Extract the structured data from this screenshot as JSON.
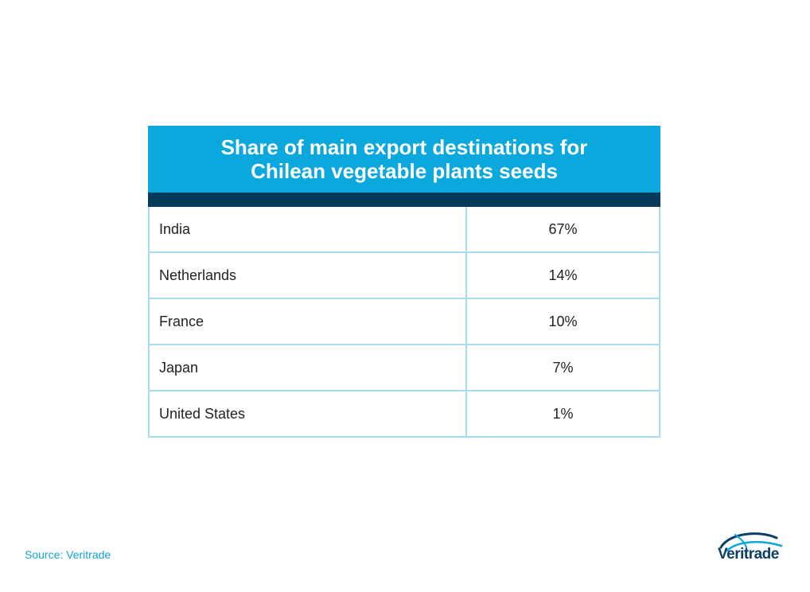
{
  "chart_data": {
    "type": "table",
    "title_line1": "Share of main export destinations for",
    "title_line2": "Chilean vegetable plants seeds",
    "rows": [
      {
        "country": "India",
        "share": "67%"
      },
      {
        "country": "Netherlands",
        "share": "14%"
      },
      {
        "country": "France",
        "share": "10%"
      },
      {
        "country": "Japan",
        "share": "7%"
      },
      {
        "country": "United States",
        "share": "1%"
      }
    ],
    "values": [
      67,
      14,
      10,
      7,
      1
    ]
  },
  "footer": {
    "source": "Source: Veritrade"
  },
  "logo": {
    "text": "Veritrade",
    "icon": "veritrade-globe-icon"
  },
  "colors": {
    "header": "#0aa8dd",
    "header_bar": "#053a5a",
    "grid": "#a9dcef",
    "source_text": "#16a3d6",
    "logo_text": "#0b3f63"
  }
}
